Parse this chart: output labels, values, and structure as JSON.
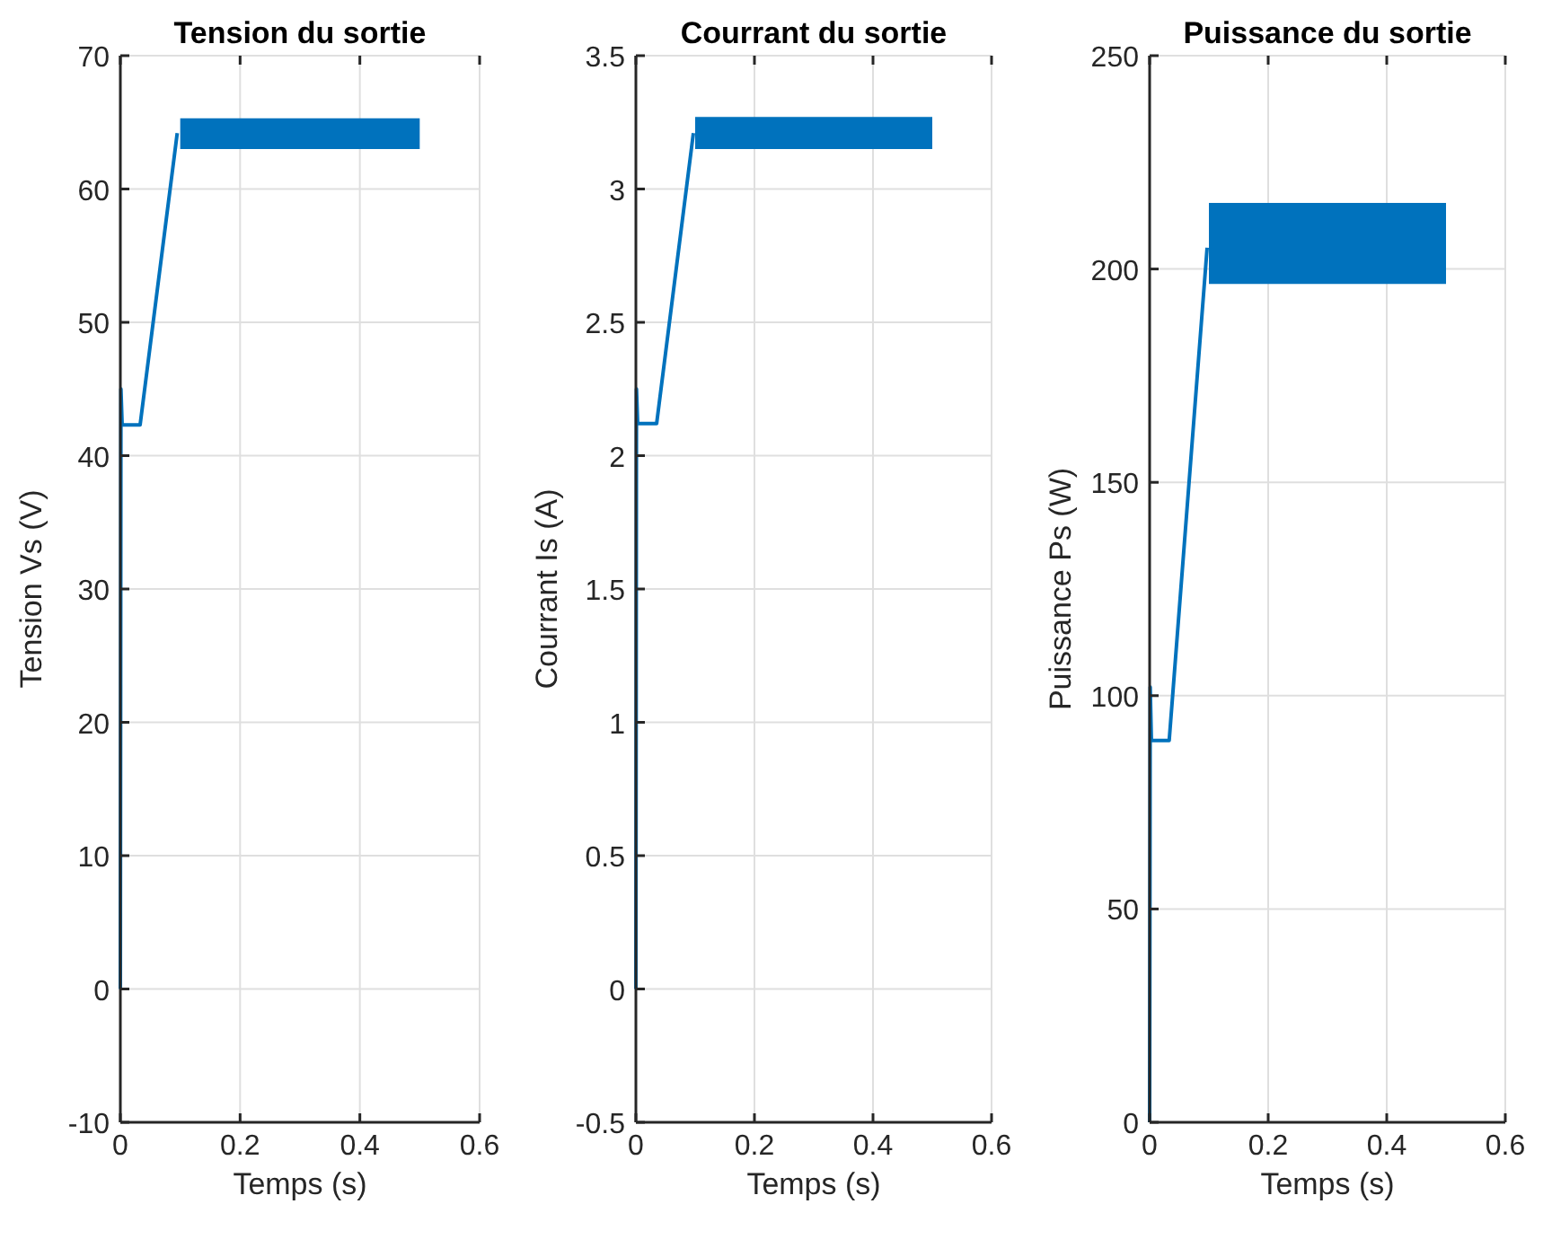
{
  "chart_data": [
    {
      "type": "line",
      "title": "Tension du sortie",
      "xlabel": "Temps (s)",
      "ylabel": "Tension Vs (V)",
      "xlim": [
        0,
        0.6
      ],
      "xticks": [
        0,
        0.2,
        0.4,
        0.6
      ],
      "ylim": [
        -10,
        70
      ],
      "yticks": [
        -10,
        0,
        10,
        20,
        30,
        40,
        50,
        60,
        70
      ],
      "grid": true,
      "series": [
        {
          "color": "#0072bd",
          "x": [
            0,
            0.001,
            0.003,
            0.033,
            0.095,
            0.1,
            0.5
          ],
          "values": [
            0,
            45,
            42.3,
            42.3,
            64.2,
            null,
            null
          ],
          "lower": [
            null,
            null,
            null,
            null,
            null,
            63,
            63
          ],
          "upper": [
            null,
            null,
            null,
            null,
            null,
            65.3,
            65.3
          ]
        }
      ]
    },
    {
      "type": "line",
      "title": "Courrant du sortie",
      "xlabel": "Temps (s)",
      "ylabel": "Courrant Is (A)",
      "xlim": [
        0,
        0.6
      ],
      "xticks": [
        0,
        0.2,
        0.4,
        0.6
      ],
      "ylim": [
        -0.5,
        3.5
      ],
      "yticks": [
        -0.5,
        0,
        0.5,
        1,
        1.5,
        2,
        2.5,
        3,
        3.5
      ],
      "grid": true,
      "series": [
        {
          "color": "#0072bd",
          "x": [
            0,
            0.001,
            0.003,
            0.035,
            0.097,
            0.1,
            0.5
          ],
          "values": [
            0,
            2.25,
            2.12,
            2.12,
            3.21,
            null,
            null
          ],
          "lower": [
            null,
            null,
            null,
            null,
            null,
            3.15,
            3.15
          ],
          "upper": [
            null,
            null,
            null,
            null,
            null,
            3.27,
            3.27
          ]
        }
      ]
    },
    {
      "type": "line",
      "title": "Puissance du sortie",
      "xlabel": "Temps (s)",
      "ylabel": "Puissance Ps (W)",
      "xlim": [
        0,
        0.6
      ],
      "xticks": [
        0,
        0.2,
        0.4,
        0.6
      ],
      "ylim": [
        0,
        250
      ],
      "yticks": [
        0,
        50,
        100,
        150,
        200,
        250
      ],
      "grid": true,
      "series": [
        {
          "color": "#0072bd",
          "x": [
            0,
            0.001,
            0.003,
            0.033,
            0.097,
            0.1,
            0.5
          ],
          "values": [
            0,
            102,
            89.5,
            89.5,
            205,
            null,
            null
          ],
          "lower": [
            null,
            null,
            null,
            null,
            null,
            196.5,
            196.5
          ],
          "upper": [
            null,
            null,
            null,
            null,
            null,
            215.5,
            215.5
          ]
        }
      ]
    }
  ]
}
